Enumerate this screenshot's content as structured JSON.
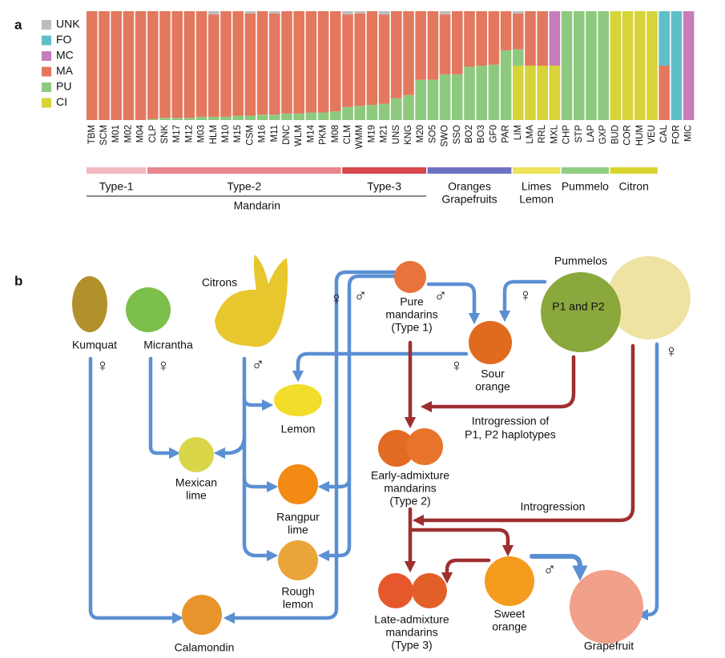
{
  "chart_data": {
    "type": "stacked-bar",
    "panel_label": "a",
    "categories": [
      "TBM",
      "SCM",
      "M01",
      "M02",
      "M04",
      "CLP",
      "SNK",
      "M17",
      "M12",
      "M03",
      "HLM",
      "M10",
      "M15",
      "CSM",
      "M16",
      "M11",
      "DNC",
      "WLM",
      "M14",
      "PKM",
      "M08",
      "CLM",
      "WMM",
      "M19",
      "M21",
      "UNS",
      "KNG",
      "M20",
      "SO5",
      "SWO",
      "SSO",
      "BO2",
      "BO3",
      "GF0",
      "PAR",
      "LIM",
      "LMA",
      "RRL",
      "MXL",
      "CHP",
      "STP",
      "LAP",
      "GXP",
      "BUD",
      "COR",
      "HUM",
      "VEU",
      "CAL",
      "FOR",
      "MIC"
    ],
    "ylim": [
      0,
      1
    ],
    "series": [
      {
        "name": "UNK",
        "color": "#bdbdbd",
        "values": [
          0,
          0,
          0,
          0,
          0,
          0,
          0,
          0,
          0,
          0,
          0.03,
          0,
          0,
          0.02,
          0,
          0.02,
          0,
          0,
          0,
          0,
          0,
          0.03,
          0.02,
          0,
          0.03,
          0,
          0,
          0,
          0,
          0.03,
          0,
          0,
          0,
          0,
          0,
          0.02,
          0,
          0,
          0,
          0,
          0,
          0,
          0,
          0,
          0,
          0,
          0,
          0,
          0,
          0
        ]
      },
      {
        "name": "FO",
        "color": "#5fbfc9",
        "values": [
          0,
          0,
          0,
          0,
          0,
          0,
          0,
          0,
          0,
          0,
          0,
          0,
          0,
          0,
          0,
          0,
          0,
          0,
          0,
          0,
          0,
          0,
          0,
          0,
          0,
          0,
          0,
          0,
          0,
          0,
          0,
          0,
          0,
          0,
          0,
          0,
          0,
          0,
          0,
          0,
          0,
          0,
          0,
          0,
          0,
          0,
          0,
          0.5,
          1,
          0
        ]
      },
      {
        "name": "MC",
        "color": "#c77cba",
        "values": [
          0,
          0,
          0,
          0,
          0,
          0,
          0,
          0,
          0,
          0,
          0,
          0,
          0,
          0,
          0,
          0,
          0,
          0,
          0,
          0,
          0,
          0,
          0,
          0,
          0,
          0,
          0,
          0,
          0,
          0,
          0,
          0,
          0,
          0,
          0,
          0,
          0,
          0,
          0.5,
          0,
          0,
          0,
          0,
          0,
          0,
          0,
          0,
          0,
          0,
          1
        ]
      },
      {
        "name": "MA",
        "color": "#e3785e",
        "values": [
          1,
          1,
          1,
          1,
          1,
          0.99,
          0.98,
          0.98,
          0.98,
          0.97,
          0.94,
          0.97,
          0.96,
          0.94,
          0.95,
          0.93,
          0.94,
          0.94,
          0.93,
          0.93,
          0.92,
          0.85,
          0.85,
          0.86,
          0.82,
          0.8,
          0.77,
          0.63,
          0.63,
          0.55,
          0.58,
          0.51,
          0.5,
          0.49,
          0.36,
          0.33,
          0.5,
          0.5,
          0,
          0,
          0,
          0,
          0,
          0,
          0,
          0,
          0,
          0.5,
          0,
          0
        ]
      },
      {
        "name": "PU",
        "color": "#8dca7f",
        "values": [
          0,
          0,
          0,
          0,
          0,
          0.01,
          0.02,
          0.02,
          0.02,
          0.03,
          0.03,
          0.03,
          0.04,
          0.04,
          0.05,
          0.05,
          0.06,
          0.06,
          0.07,
          0.07,
          0.08,
          0.12,
          0.13,
          0.14,
          0.15,
          0.2,
          0.23,
          0.37,
          0.37,
          0.42,
          0.42,
          0.49,
          0.5,
          0.51,
          0.64,
          0.15,
          0,
          0,
          0,
          1,
          1,
          1,
          1,
          0,
          0,
          0,
          0,
          0,
          0,
          0
        ]
      },
      {
        "name": "CI",
        "color": "#d6d438",
        "values": [
          0,
          0,
          0,
          0,
          0,
          0,
          0,
          0,
          0,
          0,
          0,
          0,
          0,
          0,
          0,
          0,
          0,
          0,
          0,
          0,
          0,
          0,
          0,
          0,
          0,
          0,
          0,
          0,
          0,
          0,
          0,
          0,
          0,
          0,
          0,
          0.5,
          0.5,
          0.5,
          0.5,
          0,
          0,
          0,
          0,
          1,
          1,
          1,
          1,
          0,
          0,
          0
        ]
      }
    ],
    "groups": [
      {
        "label": [
          "Type-1"
        ],
        "color": "#f3b8c0"
      },
      {
        "label": [
          "Type-2"
        ],
        "color": "#e9878e"
      },
      {
        "label": [
          "Type-3"
        ],
        "color": "#d8474b"
      },
      {
        "label": [
          "Oranges",
          "Grapefruits"
        ],
        "color": "#6e72c3"
      },
      {
        "label": [
          "Limes",
          "Lemon"
        ],
        "color": "#eee35b"
      },
      {
        "label": [
          "Pummelo"
        ],
        "color": "#8fce84"
      },
      {
        "label": [
          "Citron"
        ],
        "color": "#d8d32e"
      }
    ],
    "supergroup": "Mandarin"
  },
  "diagram": {
    "panel_label": "b",
    "female": "♀",
    "male": "♂",
    "nodes": {
      "kumquat": [
        "Kumquat"
      ],
      "micrantha": [
        "Micrantha"
      ],
      "citrons": [
        "Citrons"
      ],
      "pure": [
        "Pure",
        "mandarins",
        "(Type 1)"
      ],
      "pummelos": [
        "Pummelos"
      ],
      "p1p2": [
        "P1 and P2"
      ],
      "sour": [
        "Sour",
        "orange"
      ],
      "lemon": [
        "Lemon"
      ],
      "mexican": [
        "Mexican",
        "lime"
      ],
      "rangpur": [
        "Rangpur",
        "lime"
      ],
      "rough": [
        "Rough",
        "lemon"
      ],
      "calamondin": [
        "Calamondin"
      ],
      "early": [
        "Early-admixture",
        "mandarins",
        "(Type 2)"
      ],
      "late": [
        "Late-admixture",
        "mandarins",
        "(Type 3)"
      ],
      "sweet": [
        "Sweet",
        "orange"
      ],
      "grapefruit": [
        "Grapefruit"
      ]
    },
    "edges": {
      "introgression_p": [
        "Introgression of",
        "P1, P2 haplotypes"
      ],
      "introgression": [
        "Introgression"
      ]
    }
  }
}
